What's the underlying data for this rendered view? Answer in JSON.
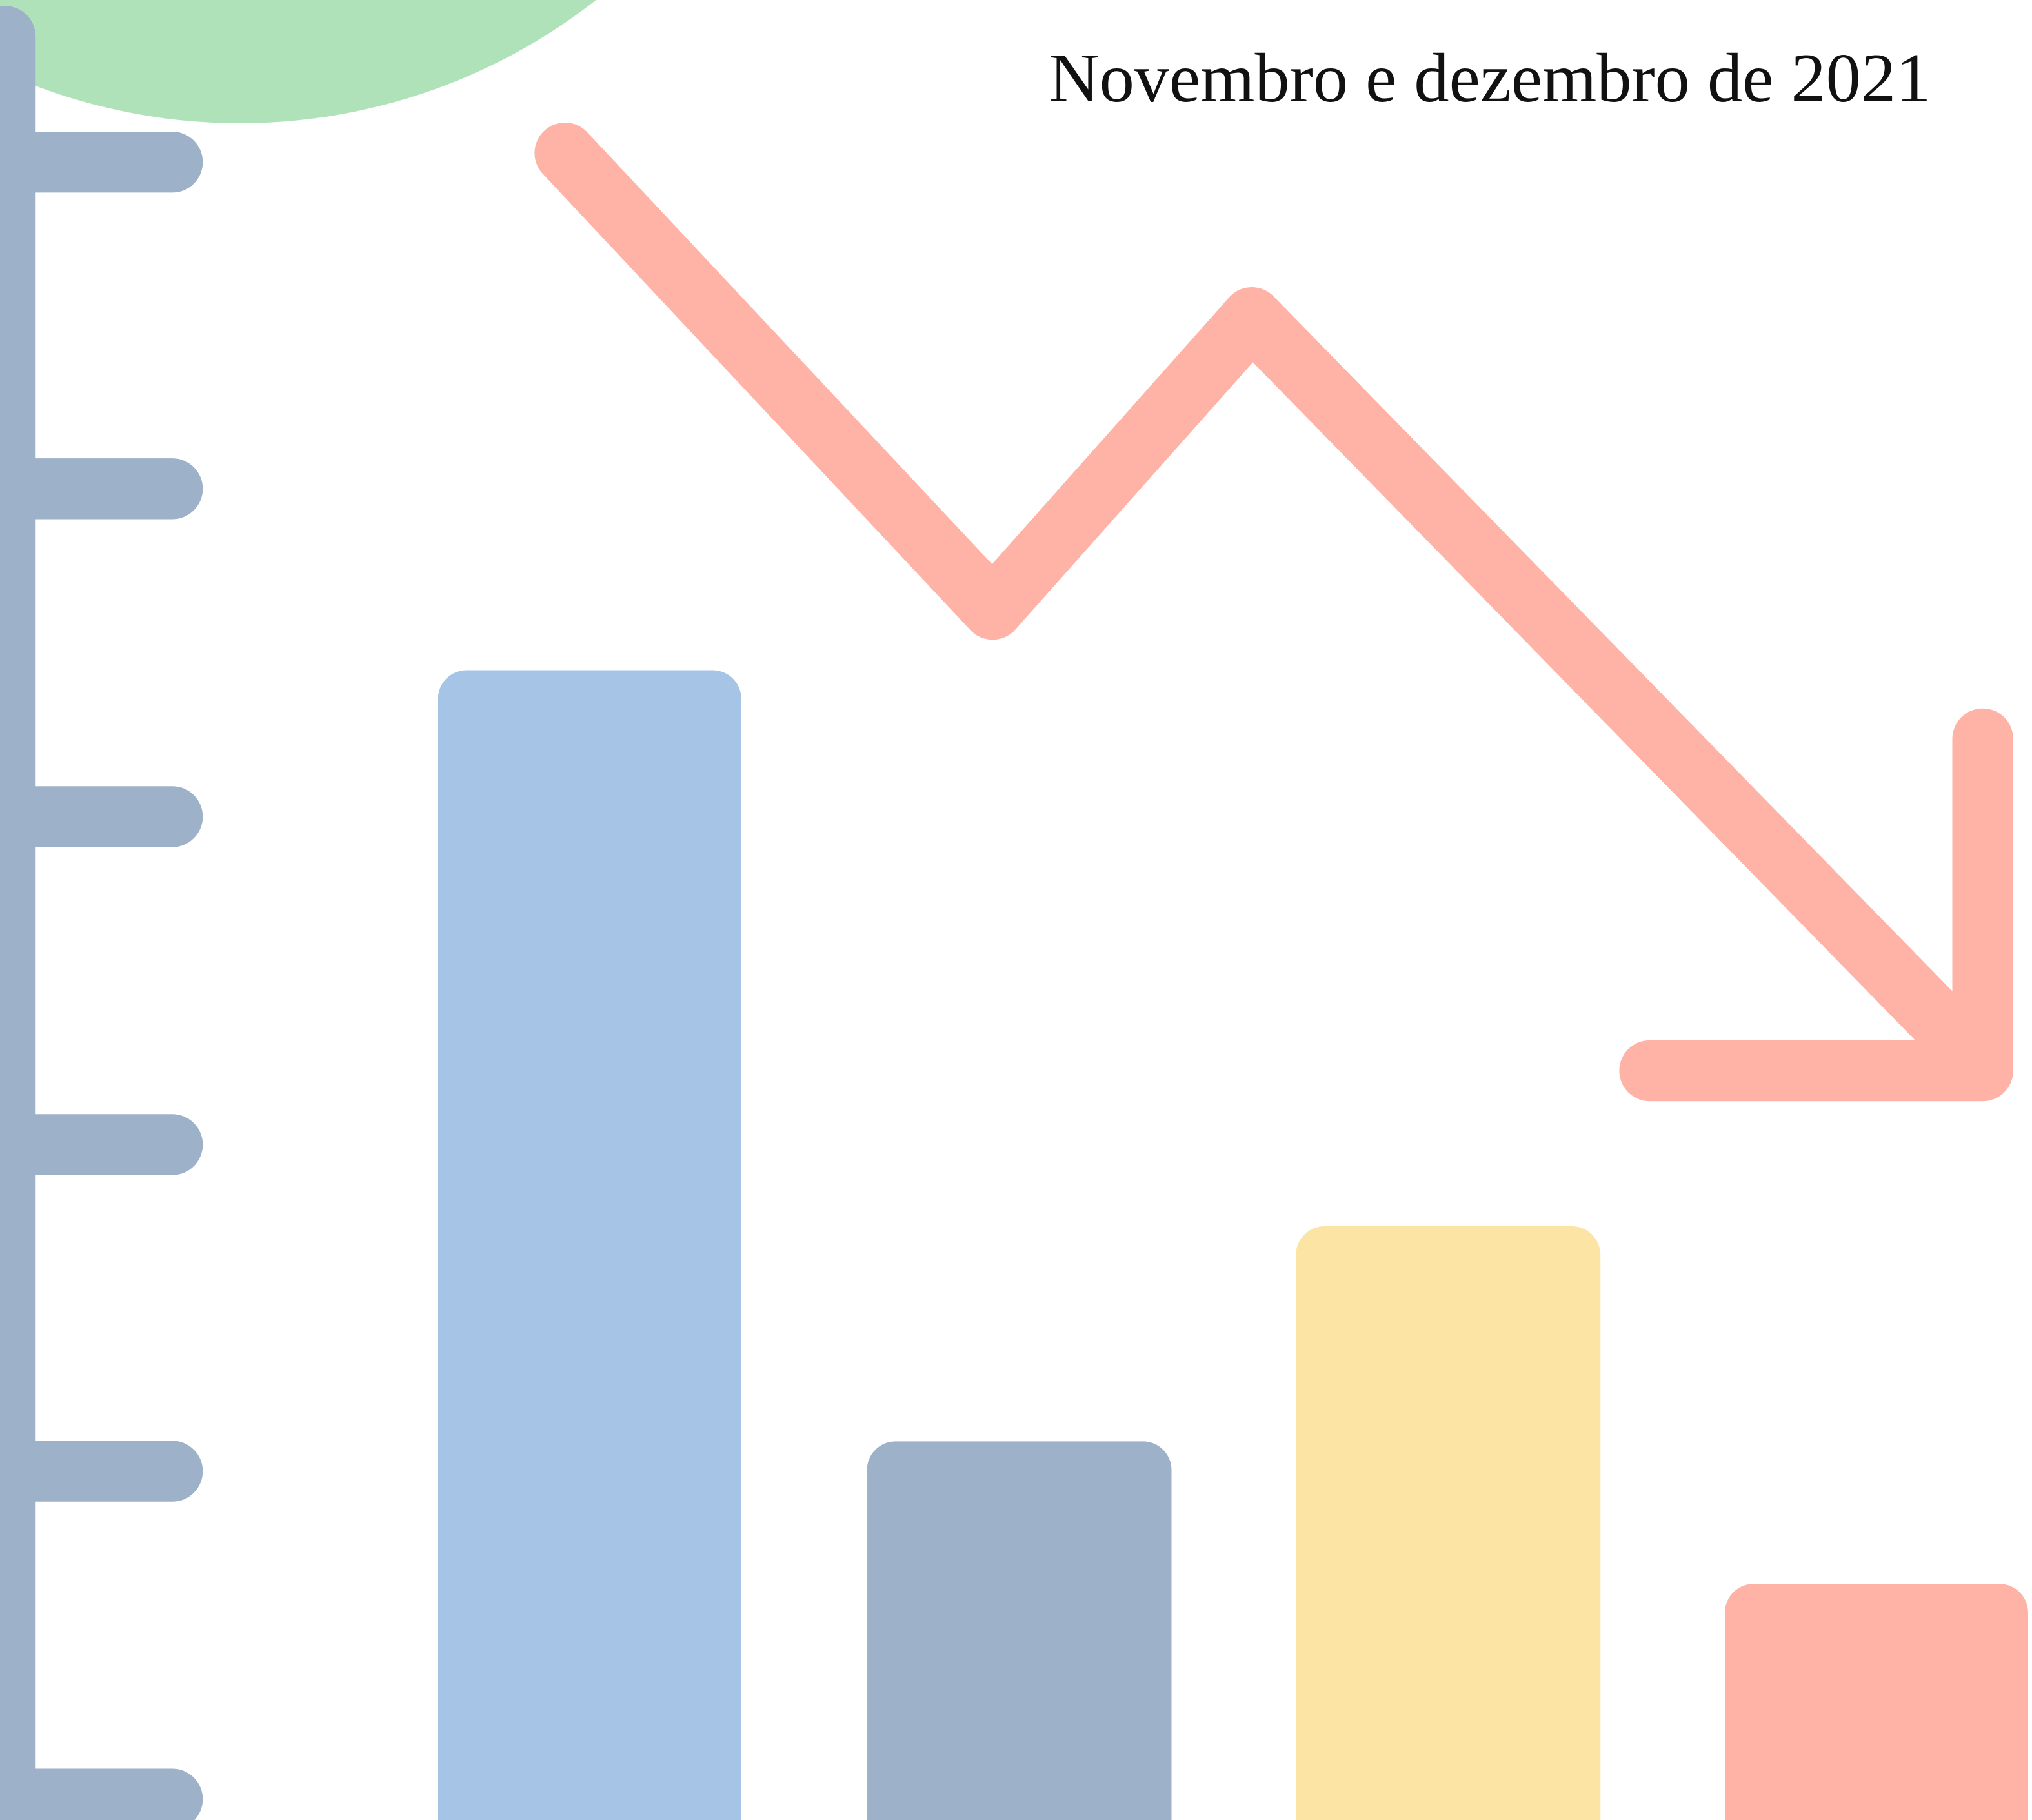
{
  "title": "Novembro e dezembro de 2021"
}
